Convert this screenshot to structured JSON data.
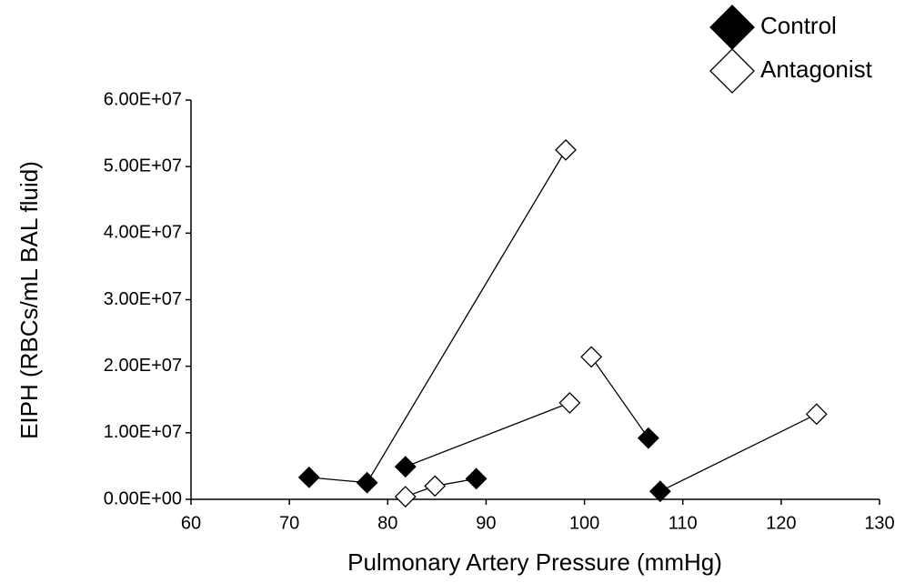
{
  "chart_data": {
    "type": "scatter",
    "x_label": "Pulmonary Artery Pressure (mmHg)",
    "y_label": "EIPH (RBCs/mL BAL fluid)",
    "xlim": [
      60,
      130
    ],
    "xticks": [
      60,
      70,
      80,
      90,
      100,
      110,
      120,
      130
    ],
    "ylim": [
      0,
      60000000
    ],
    "yticks": [
      {
        "value": 0,
        "label": "0.00E+00"
      },
      {
        "value": 10000000,
        "label": "1.00E+07"
      },
      {
        "value": 20000000,
        "label": "2.00E+07"
      },
      {
        "value": 30000000,
        "label": "3.00E+07"
      },
      {
        "value": 40000000,
        "label": "4.00E+07"
      },
      {
        "value": 50000000,
        "label": "5.00E+07"
      },
      {
        "value": 60000000,
        "label": "6.00E+07"
      }
    ],
    "legend": "top-right",
    "series": [
      {
        "name": "Control",
        "color": "#000000",
        "filled": true,
        "x": [
          72.0,
          77.9,
          81.8,
          89.0,
          106.5,
          107.7
        ],
        "values": [
          3300000,
          2500000,
          4900000,
          3100000,
          9200000,
          1200000
        ]
      },
      {
        "name": "Antagonist",
        "color": "#000000",
        "filled": false,
        "x": [
          98.1,
          98.5,
          100.7,
          81.8,
          84.8,
          123.6
        ],
        "values": [
          52500000,
          14500000,
          21400000,
          400000,
          2000000,
          12800000
        ]
      }
    ]
  }
}
